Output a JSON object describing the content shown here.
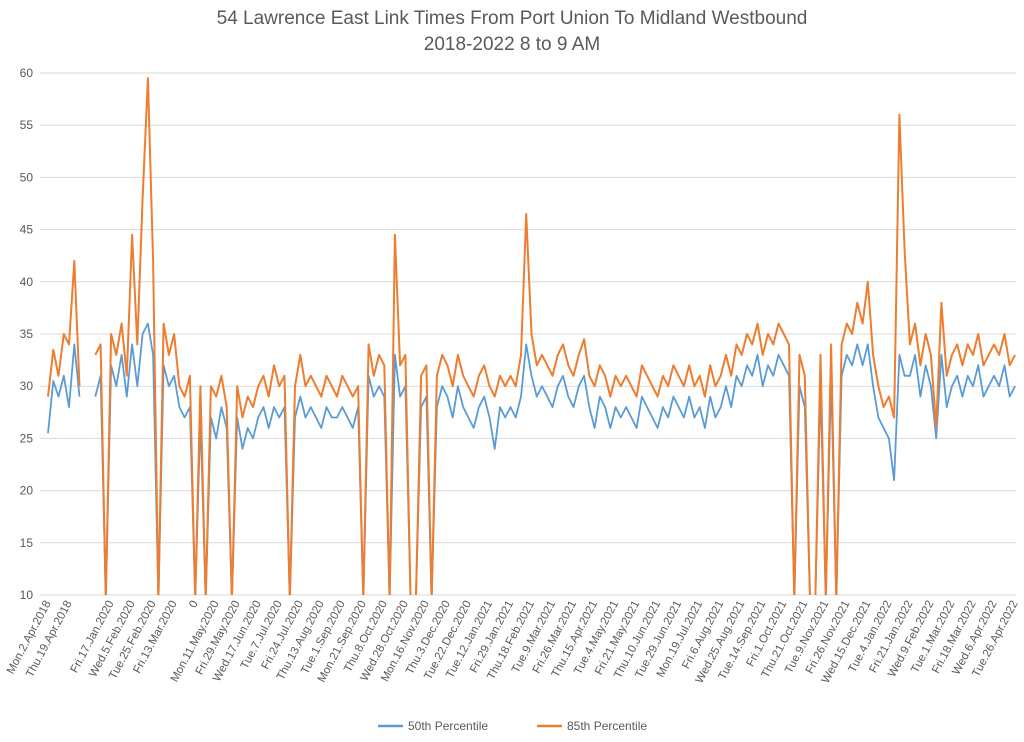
{
  "chart_data": {
    "type": "line",
    "title": [
      "54 Lawrence East Link Times From Port Union To Midland Westbound",
      "2018-2022 8 to 9 AM"
    ],
    "xlabel": "",
    "ylabel": "",
    "ylim": [
      10,
      60
    ],
    "yticks": [
      10,
      15,
      20,
      25,
      30,
      35,
      40,
      45,
      50,
      55,
      60
    ],
    "grid": true,
    "legend_position": "bottom",
    "xtick_labels": [
      {
        "index": 0,
        "label": "Mon.2.Apr.2018"
      },
      {
        "index": 4,
        "label": "Thu.19.Apr.2018"
      },
      {
        "index": 12,
        "label": "Fri.17.Jan.2020"
      },
      {
        "index": 16,
        "label": "Wed.5.Feb.2020"
      },
      {
        "index": 20,
        "label": "Tue.25.Feb.2020"
      },
      {
        "index": 24,
        "label": "Fri.13.Mar.2020"
      },
      {
        "index": 28,
        "label": "0"
      },
      {
        "index": 32,
        "label": "Mon.11.May.2020"
      },
      {
        "index": 36,
        "label": "Fri.29.May.2020"
      },
      {
        "index": 40,
        "label": "Wed.17.Jun.2020"
      },
      {
        "index": 44,
        "label": "Tue.7.Jul.2020"
      },
      {
        "index": 48,
        "label": "Fri.24.Jul.2020"
      },
      {
        "index": 52,
        "label": "Thu.13.Aug.2020"
      },
      {
        "index": 56,
        "label": "Tue.1.Sep.2020"
      },
      {
        "index": 60,
        "label": "Mon.21.Sep.2020"
      },
      {
        "index": 64,
        "label": "Thu.8.Oct.2020"
      },
      {
        "index": 68,
        "label": "Wed.28.Oct.2020"
      },
      {
        "index": 72,
        "label": "Mon.16.Nov.2020"
      },
      {
        "index": 76,
        "label": "Thu.3.Dec.2020"
      },
      {
        "index": 80,
        "label": "Tue.22.Dec.2020"
      },
      {
        "index": 84,
        "label": "Tue.12.Jan.2021"
      },
      {
        "index": 88,
        "label": "Fri.29.Jan.2021"
      },
      {
        "index": 92,
        "label": "Thu.18.Feb.2021"
      },
      {
        "index": 96,
        "label": "Tue.9.Mar.2021"
      },
      {
        "index": 100,
        "label": "Fri.26.Mar.2021"
      },
      {
        "index": 104,
        "label": "Thu.15.Apr.2021"
      },
      {
        "index": 108,
        "label": "Tue.4.May.2021"
      },
      {
        "index": 112,
        "label": "Fri.21.May.2021"
      },
      {
        "index": 116,
        "label": "Thu.10.Jun.2021"
      },
      {
        "index": 120,
        "label": "Tue.29.Jun.2021"
      },
      {
        "index": 124,
        "label": "Mon.19.Jul.2021"
      },
      {
        "index": 128,
        "label": "Fri.6.Aug.2021"
      },
      {
        "index": 132,
        "label": "Wed.25.Aug.2021"
      },
      {
        "index": 136,
        "label": "Tue.14.Sep.2021"
      },
      {
        "index": 140,
        "label": "Fri.1.Oct.2021"
      },
      {
        "index": 144,
        "label": "Thu.21.Oct.2021"
      },
      {
        "index": 148,
        "label": "Tue.9.Nov.2021"
      },
      {
        "index": 152,
        "label": "Fri.26.Nov.2021"
      },
      {
        "index": 156,
        "label": "Wed.15.Dec.2021"
      },
      {
        "index": 160,
        "label": "Tue.4.Jan.2022"
      },
      {
        "index": 164,
        "label": "Fri.21.Jan.2022"
      },
      {
        "index": 168,
        "label": "Wed.9.Feb.2022"
      },
      {
        "index": 172,
        "label": "Tue.1.Mar.2022"
      },
      {
        "index": 176,
        "label": "Fri.18.Mar.2022"
      },
      {
        "index": 180,
        "label": "Wed.6.Apr.2022"
      },
      {
        "index": 184,
        "label": "Tue.26.Apr.2022"
      }
    ],
    "series": [
      {
        "name": "50th Percentile",
        "color": "#5B9BD5",
        "values": [
          25.5,
          30.5,
          29,
          31,
          28,
          34,
          29,
          null,
          null,
          29,
          31,
          0,
          32,
          30,
          33,
          29,
          34,
          30,
          35,
          36,
          33,
          0,
          32,
          30,
          31,
          28,
          27,
          28,
          0,
          27,
          0,
          27,
          25,
          28,
          26,
          0,
          27,
          24,
          26,
          25,
          27,
          28,
          26,
          28,
          27,
          28,
          0,
          27,
          29,
          27,
          28,
          27,
          26,
          28,
          27,
          27,
          28,
          27,
          26,
          28,
          0,
          31,
          29,
          30,
          29,
          0,
          33,
          29,
          30,
          0,
          0,
          28,
          29,
          0,
          28,
          30,
          29,
          27,
          30,
          28,
          27,
          26,
          28,
          29,
          27,
          24,
          28,
          27,
          28,
          27,
          29,
          34,
          31,
          29,
          30,
          29,
          28,
          30,
          31,
          29,
          28,
          30,
          31,
          28,
          26,
          29,
          28,
          26,
          28,
          27,
          28,
          27,
          26,
          29,
          28,
          27,
          26,
          28,
          27,
          29,
          28,
          27,
          29,
          27,
          28,
          26,
          29,
          27,
          28,
          30,
          28,
          31,
          30,
          32,
          31,
          33,
          30,
          32,
          31,
          33,
          32,
          31,
          0,
          30,
          28,
          0,
          0,
          30,
          0,
          31,
          0,
          31,
          33,
          32,
          34,
          32,
          34,
          30,
          27,
          26,
          25,
          21,
          33,
          31,
          31,
          33,
          29,
          32,
          30,
          25,
          33,
          28,
          30,
          31,
          29,
          31,
          30,
          32,
          29,
          30,
          31,
          30,
          32,
          29,
          30
        ]
      },
      {
        "name": "85th Percentile",
        "color": "#ED7D31",
        "values": [
          29,
          33.5,
          31,
          35,
          34,
          42,
          30,
          null,
          null,
          33,
          34,
          0,
          35,
          33,
          36,
          31,
          44.5,
          34,
          48,
          59.5,
          42,
          0,
          36,
          33,
          35,
          30,
          29,
          31,
          0,
          30,
          0,
          30,
          29,
          31,
          28,
          0,
          30,
          27,
          29,
          28,
          30,
          31,
          29,
          32,
          30,
          31,
          0,
          30,
          33,
          30,
          31,
          30,
          29,
          31,
          30,
          29,
          31,
          30,
          29,
          30,
          0,
          34,
          31,
          33,
          32,
          0,
          44.5,
          32,
          33,
          0,
          0,
          31,
          32,
          0,
          31,
          33,
          32,
          30,
          33,
          31,
          30,
          29,
          31,
          32,
          30,
          29,
          31,
          30,
          31,
          30,
          33,
          46.5,
          35,
          32,
          33,
          32,
          31,
          33,
          34,
          32,
          31,
          33,
          34.5,
          31,
          30,
          32,
          31,
          29,
          31,
          30,
          31,
          30,
          29,
          32,
          31,
          30,
          29,
          31,
          30,
          32,
          31,
          30,
          32,
          30,
          31,
          29,
          32,
          30,
          31,
          33,
          31,
          34,
          33,
          35,
          34,
          36,
          33,
          35,
          34,
          36,
          35,
          34,
          0,
          33,
          31,
          0,
          0,
          33,
          0,
          34,
          0,
          34,
          36,
          35,
          38,
          36,
          40,
          33,
          30,
          28,
          29,
          27,
          56,
          43,
          34,
          36,
          32,
          35,
          33,
          26,
          38,
          31,
          33,
          34,
          32,
          34,
          33,
          35,
          32,
          33,
          34,
          33,
          35,
          32,
          33
        ]
      }
    ]
  }
}
